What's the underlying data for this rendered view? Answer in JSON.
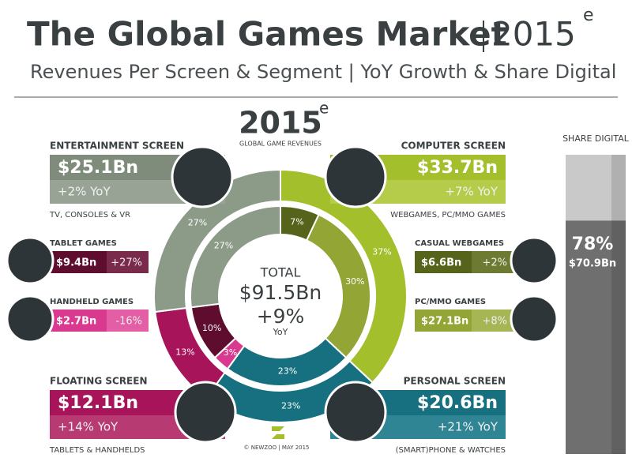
{
  "header": {
    "title": "The Global Games Market",
    "year": "2015",
    "year_sup": "e",
    "subtitle": "Revenues Per Screen & Segment | YoY Growth & Share Digital"
  },
  "center": {
    "year": "2015",
    "year_sup": "e",
    "caption": "GLOBAL GAME REVENUES",
    "total_label": "TOTAL",
    "total": "$91.5Bn",
    "growth": "+9%",
    "growth_label": "YoY"
  },
  "screens": [
    {
      "name": "ENTERTAINMENT SCREEN",
      "revenue": "$25.1Bn",
      "growth": "+2% YoY",
      "desc": "TV, CONSOLES & VR",
      "color": "#7f8c7c",
      "color2": "#98a395"
    },
    {
      "name": "COMPUTER SCREEN",
      "revenue": "$33.7Bn",
      "growth": "+7% YoY",
      "desc": "WEBGAMES, PC/MMO GAMES",
      "color": "#a4bf2c",
      "color2": "#b5cc4a"
    },
    {
      "name": "FLOATING SCREEN",
      "revenue": "$12.1Bn",
      "growth": "+14% YoY",
      "desc": "TABLETS & HANDHELDS",
      "color": "#a8145a",
      "color2": "#b83a73"
    },
    {
      "name": "PERSONAL SCREEN",
      "revenue": "$20.6Bn",
      "growth": "+21% YoY",
      "desc": "(SMART)PHONE & WATCHES",
      "color": "#16707f",
      "color2": "#2f8593"
    }
  ],
  "segments": [
    {
      "name": "TABLET GAMES",
      "revenue": "$9.4Bn",
      "growth": "+27%",
      "color": "#5e0d2e",
      "color2": "#7a2a4b"
    },
    {
      "name": "HANDHELD GAMES",
      "revenue": "$2.7Bn",
      "growth": "-16%",
      "color": "#d9398f",
      "color2": "#e35ea5"
    },
    {
      "name": "CASUAL WEBGAMES",
      "revenue": "$6.6Bn",
      "growth": "+2%",
      "color": "#56631a",
      "color2": "#6d7a32"
    },
    {
      "name": "PC/MMO GAMES",
      "revenue": "$27.1Bn",
      "growth": "+8%",
      "color": "#93a534",
      "color2": "#a6b655"
    }
  ],
  "donut": {
    "outer": {
      "values": [
        37,
        23,
        13,
        27
      ],
      "value_labels": [
        "37%",
        "23%",
        "13%",
        "27%"
      ],
      "colors": [
        "#a4bf2c",
        "#16707f",
        "#a8145a",
        "#8c9a88"
      ]
    },
    "inner": {
      "values": [
        7,
        30,
        23,
        3,
        10,
        27
      ],
      "value_labels": [
        "7%",
        "30%",
        "23%",
        "3%",
        "10%",
        "27%"
      ],
      "colors": [
        "#56631a",
        "#93a534",
        "#16707f",
        "#d9398f",
        "#5e0d2e",
        "#8c9a88"
      ]
    }
  },
  "share": {
    "heading": "SHARE DIGITAL",
    "value": 78,
    "value_label": "78%",
    "amount": "$70.9Bn"
  },
  "footer": "© NEWZOO | MAY 2015"
}
